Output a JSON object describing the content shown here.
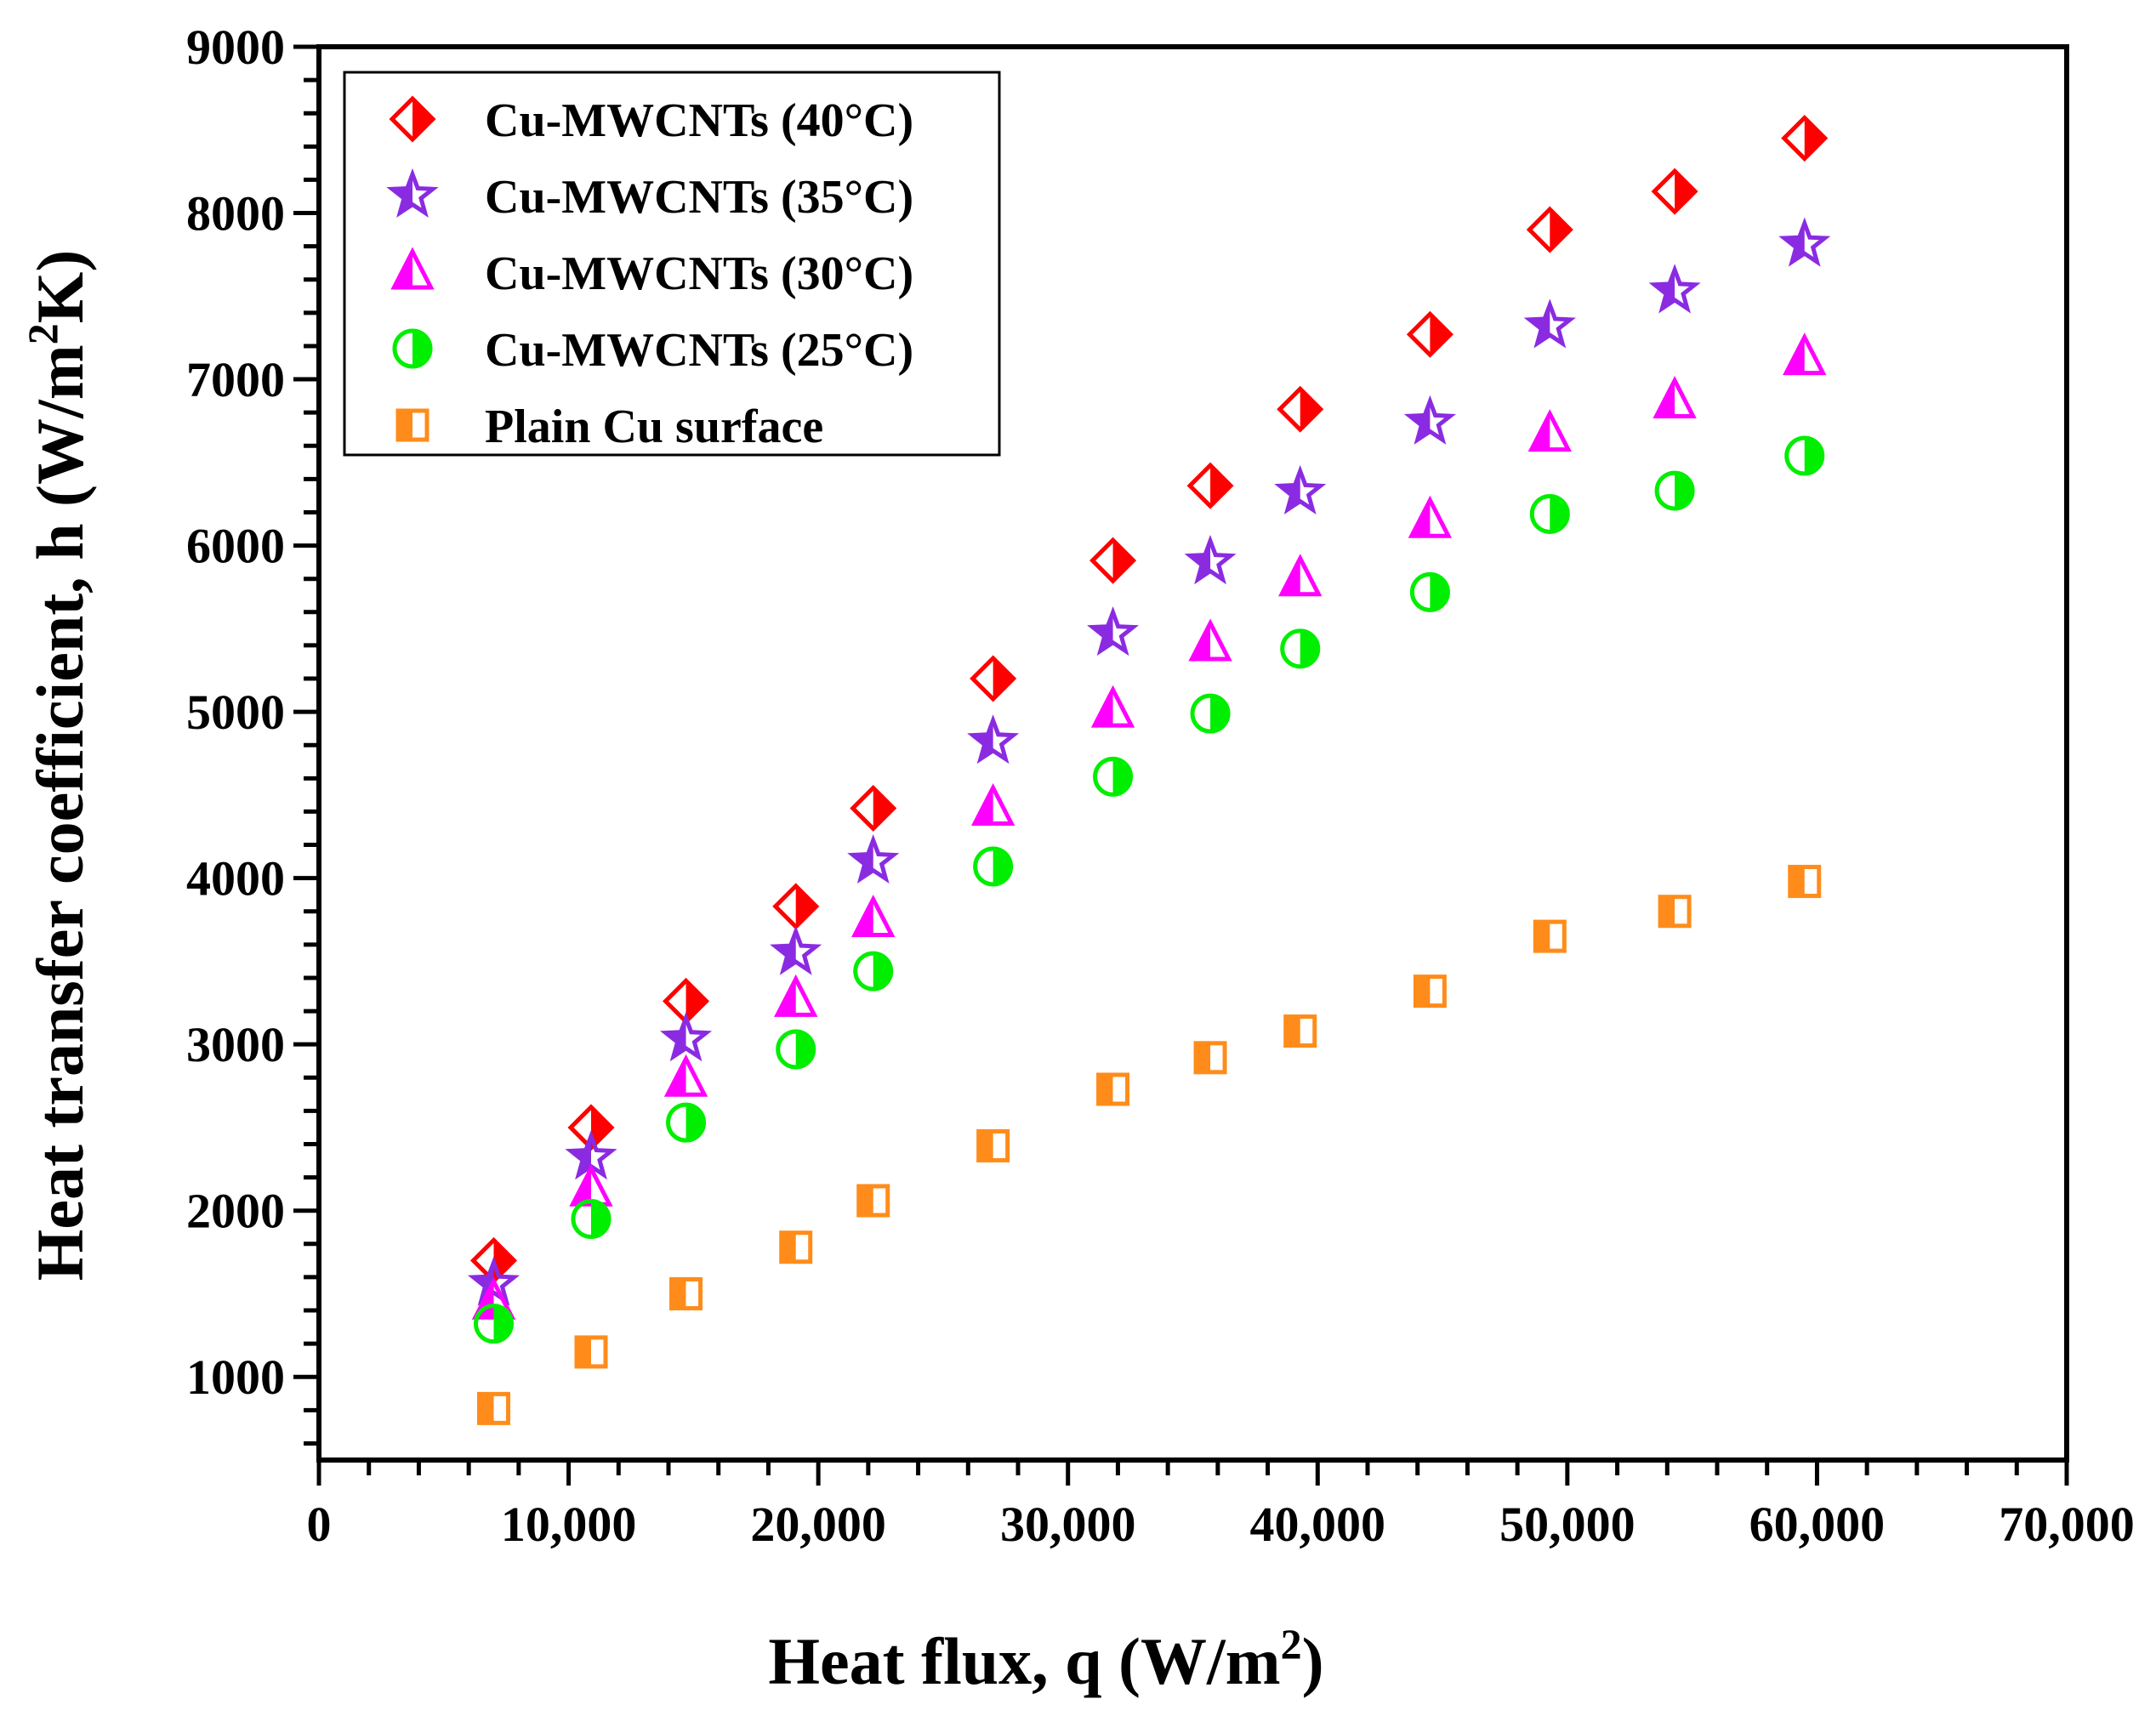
{
  "chart_data": {
    "type": "scatter",
    "title": "",
    "xlabel": "Heat flux, q (W/m",
    "xlabel_sup": "2",
    "xlabel_end": ")",
    "ylabel": "Heat transfer coefficient, h (W/m",
    "ylabel_sup": "2",
    "ylabel_end": "K)",
    "xlim": [
      0,
      70000
    ],
    "ylim": [
      500,
      9000
    ],
    "xticks": [
      0,
      10000,
      20000,
      30000,
      40000,
      50000,
      60000,
      70000
    ],
    "xtick_labels": [
      "0",
      "10,000",
      "20,000",
      "30,000",
      "40,000",
      "50,000",
      "60,000",
      "70,000"
    ],
    "yticks": [
      1000,
      2000,
      3000,
      4000,
      5000,
      6000,
      7000,
      8000,
      9000
    ],
    "ytick_labels": [
      "1000",
      "2000",
      "3000",
      "4000",
      "5000",
      "6000",
      "7000",
      "8000",
      "9000"
    ],
    "grid": false,
    "legend_position": "top-left",
    "x": [
      7000,
      10900,
      14700,
      19100,
      22200,
      27000,
      31800,
      35700,
      39300,
      44500,
      49300,
      54300,
      59500
    ],
    "series": [
      {
        "name": "Cu-MWCNTs (40°C)",
        "marker": "diamond",
        "color": "#ff0000",
        "values": [
          1700,
          2500,
          3260,
          3830,
          4420,
          5200,
          5910,
          6360,
          6820,
          7270,
          7900,
          8130,
          8450
        ]
      },
      {
        "name": "Cu-MWCNTs (35°C)",
        "marker": "star",
        "color": "#8a2be2",
        "values": [
          1560,
          2320,
          3030,
          3550,
          4100,
          4820,
          5470,
          5900,
          6320,
          6740,
          7320,
          7530,
          7810
        ]
      },
      {
        "name": "Cu-MWCNTs (30°C)",
        "marker": "triangle",
        "color": "#ff00ff",
        "values": [
          1450,
          2130,
          2790,
          3270,
          3750,
          4420,
          5010,
          5410,
          5800,
          6150,
          6670,
          6870,
          7130
        ]
      },
      {
        "name": "Cu-MWCNTs (25°C)",
        "marker": "circle",
        "color": "#00ee00",
        "values": [
          1320,
          1950,
          2530,
          2970,
          3440,
          4070,
          4610,
          4990,
          5380,
          5720,
          6190,
          6330,
          6540
        ]
      },
      {
        "name": "Plain Cu surface",
        "marker": "square",
        "color": "#ff8c1a",
        "values": [
          810,
          1150,
          1500,
          1780,
          2060,
          2390,
          2730,
          2920,
          3080,
          3320,
          3650,
          3800,
          3980
        ]
      }
    ]
  }
}
